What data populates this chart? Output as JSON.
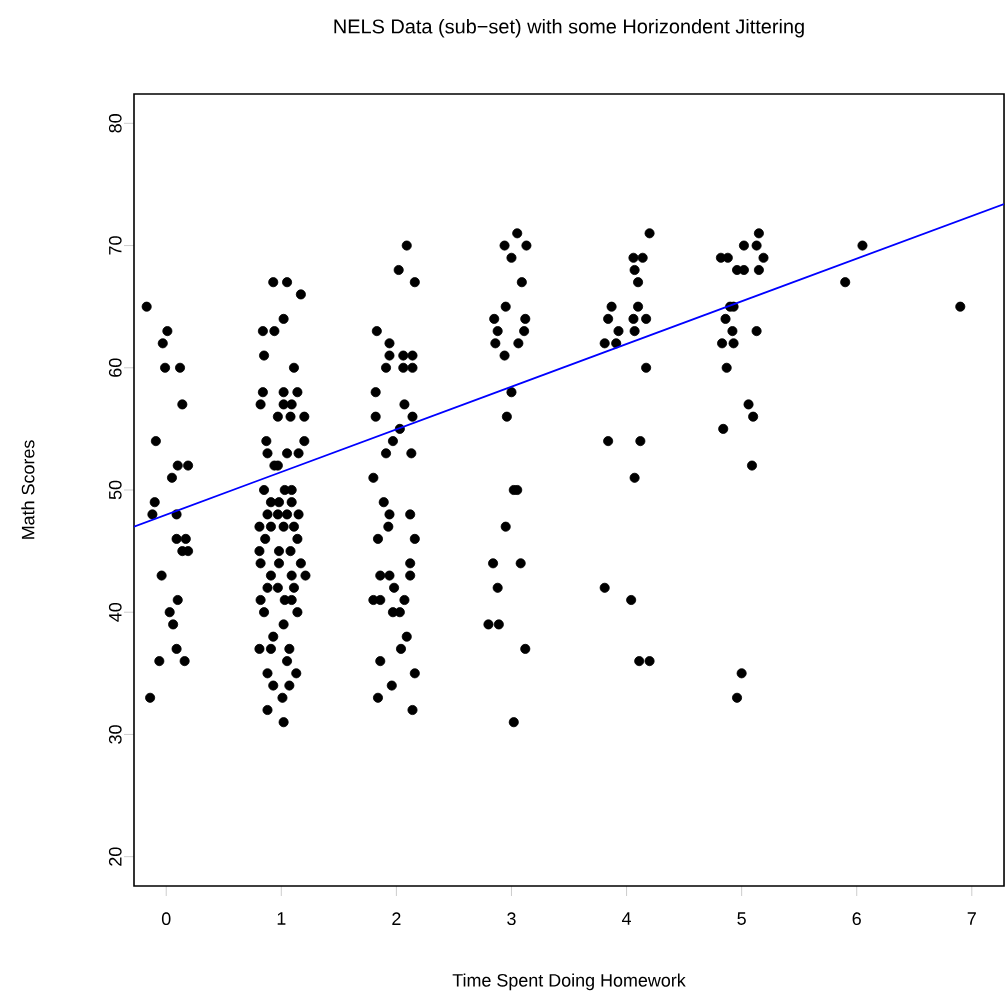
{
  "chart_data": {
    "type": "scatter",
    "title": "NELS Data (sub−set) with some Horizondent Jittering",
    "xlabel": "Time Spent Doing Homework",
    "ylabel": "Math Scores",
    "xlim": [
      -0.28,
      7.28
    ],
    "ylim": [
      17.6,
      82.4
    ],
    "xticks": [
      0,
      1,
      2,
      3,
      4,
      5,
      6,
      7
    ],
    "yticks": [
      20,
      30,
      40,
      50,
      60,
      70,
      80
    ],
    "series": [
      {
        "color": "#000000",
        "marker": "circle",
        "x": [
          -0.17,
          0.01,
          -0.03,
          -0.01,
          0.12,
          0.14,
          -0.09,
          0.19,
          0.1,
          0.05,
          -0.1,
          -0.12,
          0.09,
          0.09,
          0.17,
          0.14,
          0.19,
          -0.04,
          0.1,
          0.03,
          0.06,
          0.09,
          -0.06,
          0.16,
          -0.14,
          0.93,
          1.05,
          1.17,
          1.02,
          0.84,
          0.94,
          0.85,
          1.11,
          0.84,
          1.02,
          1.14,
          0.82,
          1.02,
          1.09,
          0.97,
          1.08,
          1.2,
          0.87,
          1.2,
          0.88,
          1.05,
          1.15,
          0.94,
          0.97,
          0.85,
          1.03,
          1.09,
          0.91,
          0.98,
          1.09,
          0.88,
          0.97,
          1.05,
          1.15,
          0.81,
          0.91,
          1.02,
          1.11,
          0.86,
          1.14,
          0.81,
          0.98,
          1.08,
          0.82,
          0.98,
          1.17,
          1.21,
          0.91,
          1.09,
          0.88,
          0.97,
          1.11,
          0.82,
          1.03,
          1.09,
          0.85,
          1.14,
          1.02,
          0.93,
          0.81,
          0.91,
          1.07,
          1.05,
          0.88,
          1.13,
          0.93,
          1.07,
          1.01,
          0.88,
          1.02,
          2.09,
          2.02,
          2.16,
          1.83,
          1.94,
          1.94,
          2.06,
          2.14,
          1.91,
          2.06,
          2.14,
          1.82,
          2.07,
          1.82,
          2.14,
          2.03,
          1.97,
          1.91,
          2.13,
          1.8,
          1.89,
          1.94,
          2.12,
          1.93,
          1.84,
          2.16,
          2.12,
          1.86,
          1.94,
          2.12,
          1.98,
          1.8,
          1.86,
          2.07,
          1.97,
          2.03,
          2.09,
          2.04,
          1.86,
          2.16,
          1.96,
          1.84,
          2.14,
          3.05,
          2.94,
          3.13,
          3.0,
          3.09,
          2.95,
          2.85,
          3.12,
          2.88,
          3.11,
          2.86,
          3.06,
          2.94,
          3.0,
          2.96,
          3.02,
          3.05,
          2.95,
          2.84,
          3.08,
          2.88,
          2.8,
          2.89,
          3.12,
          3.02,
          4.2,
          4.06,
          4.14,
          4.07,
          4.1,
          3.87,
          4.1,
          3.84,
          4.06,
          4.17,
          3.93,
          4.07,
          3.81,
          3.91,
          4.17,
          3.84,
          4.12,
          4.07,
          3.81,
          4.04,
          4.11,
          4.2,
          5.15,
          5.02,
          5.13,
          4.82,
          4.88,
          5.19,
          4.96,
          5.02,
          5.15,
          4.9,
          4.93,
          4.86,
          4.92,
          5.13,
          4.83,
          4.93,
          4.87,
          5.06,
          5.1,
          4.84,
          5.09,
          5.0,
          4.96,
          6.05,
          5.9,
          6.9
        ],
        "values": [
          65,
          63,
          62,
          60,
          60,
          57,
          54,
          52,
          52,
          51,
          49,
          48,
          48,
          46,
          46,
          45,
          45,
          43,
          41,
          40,
          39,
          37,
          36,
          36,
          33,
          67,
          67,
          66,
          64,
          63,
          63,
          61,
          60,
          58,
          58,
          58,
          57,
          57,
          57,
          56,
          56,
          56,
          54,
          54,
          53,
          53,
          53,
          52,
          52,
          50,
          50,
          50,
          49,
          49,
          49,
          48,
          48,
          48,
          48,
          47,
          47,
          47,
          47,
          46,
          46,
          45,
          45,
          45,
          44,
          44,
          44,
          43,
          43,
          43,
          42,
          42,
          42,
          41,
          41,
          41,
          40,
          40,
          39,
          38,
          37,
          37,
          37,
          36,
          35,
          35,
          34,
          34,
          33,
          32,
          31,
          70,
          68,
          67,
          63,
          62,
          61,
          61,
          61,
          60,
          60,
          60,
          58,
          57,
          56,
          56,
          55,
          54,
          53,
          53,
          51,
          49,
          48,
          48,
          47,
          46,
          46,
          44,
          43,
          43,
          43,
          42,
          41,
          41,
          41,
          40,
          40,
          38,
          37,
          36,
          35,
          34,
          33,
          32,
          71,
          70,
          70,
          69,
          67,
          65,
          64,
          64,
          63,
          63,
          62,
          62,
          61,
          58,
          56,
          50,
          50,
          47,
          44,
          44,
          42,
          39,
          39,
          37,
          31,
          71,
          69,
          69,
          68,
          67,
          65,
          65,
          64,
          64,
          64,
          63,
          63,
          62,
          62,
          60,
          54,
          54,
          51,
          42,
          41,
          36,
          36,
          71,
          70,
          70,
          69,
          69,
          69,
          68,
          68,
          68,
          65,
          65,
          64,
          63,
          63,
          62,
          62,
          60,
          57,
          56,
          55,
          52,
          35,
          33,
          70,
          67,
          65
        ]
      },
      {
        "type": "line",
        "color": "#0000ff",
        "x": [
          -0.28,
          7.28
        ],
        "values": [
          47,
          73.4
        ]
      }
    ]
  }
}
